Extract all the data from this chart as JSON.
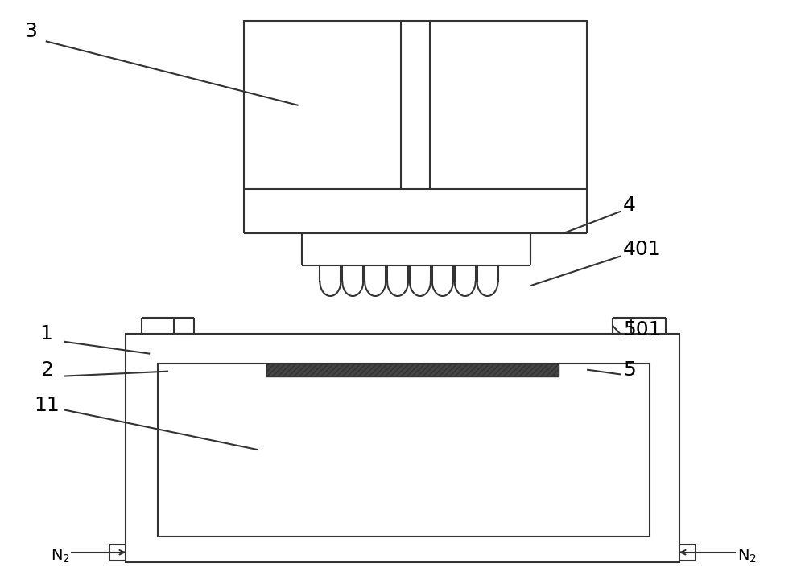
{
  "bg_color": "#ffffff",
  "line_color": "#333333",
  "line_width": 1.5,
  "fig_width": 10.0,
  "fig_height": 7.21,
  "label_fontsize": 18,
  "label_fontsize_n2": 14
}
